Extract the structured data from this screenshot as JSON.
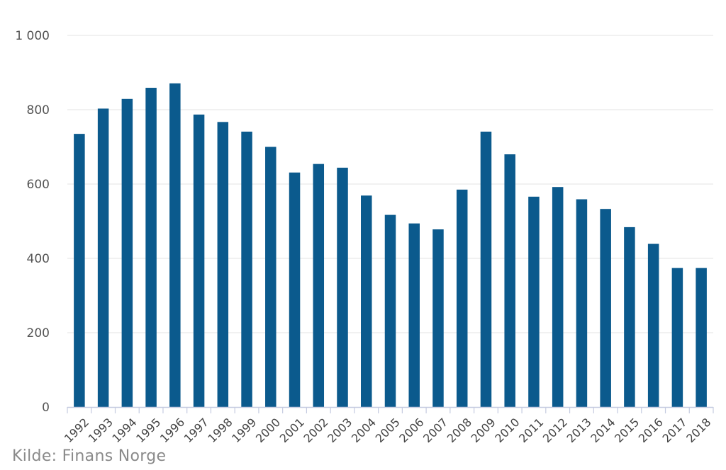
{
  "chart_data": {
    "type": "bar",
    "title": "",
    "xlabel": "",
    "ylabel": "",
    "categories": [
      "1992",
      "1993",
      "1994",
      "1995",
      "1996",
      "1997",
      "1998",
      "1999",
      "2000",
      "2001",
      "2002",
      "2003",
      "2004",
      "2005",
      "2006",
      "2007",
      "2008",
      "2009",
      "2010",
      "2011",
      "2012",
      "2013",
      "2014",
      "2015",
      "2016",
      "2017",
      "2018"
    ],
    "values": [
      735,
      803,
      829,
      859,
      871,
      787,
      767,
      741,
      700,
      631,
      654,
      644,
      569,
      517,
      494,
      478,
      585,
      741,
      680,
      566,
      592,
      559,
      533,
      484,
      439,
      374,
      374
    ],
    "ylim": [
      0,
      1000
    ],
    "yticks": [
      0,
      200,
      400,
      600,
      800,
      1000
    ],
    "ytick_labels": [
      "0",
      "200",
      "400",
      "600",
      "800",
      "1 000"
    ],
    "grid": true,
    "legend": "none",
    "bar_color": "#0b5a8d",
    "grid_color": "#e3e3e3",
    "axis_color": "#c5cbe0"
  },
  "source_text": "Kilde: Finans Norge"
}
